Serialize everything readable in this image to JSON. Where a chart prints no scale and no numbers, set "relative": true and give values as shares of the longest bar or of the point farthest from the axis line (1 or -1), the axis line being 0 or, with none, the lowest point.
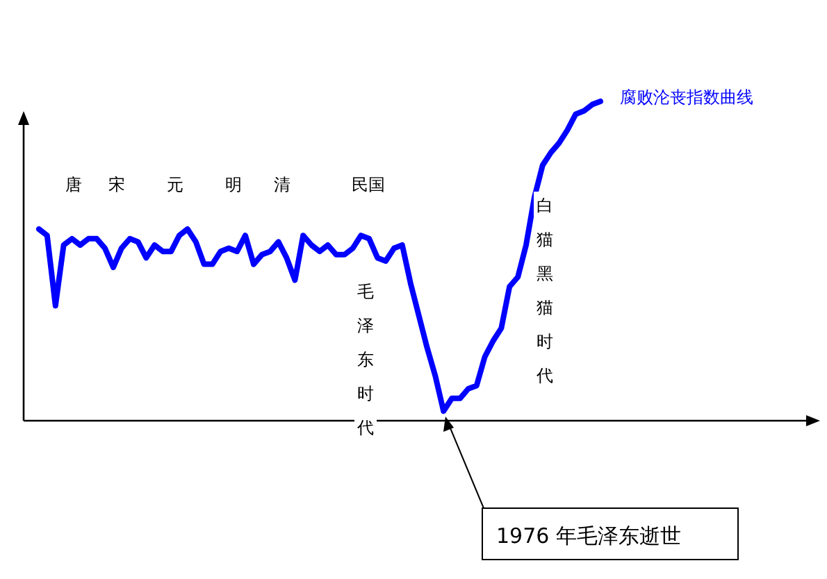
{
  "chart_data": {
    "type": "line",
    "relative": true,
    "categories": [
      null,
      null,
      null,
      null,
      null,
      null,
      null,
      null,
      null,
      null,
      null,
      null,
      null,
      null,
      null,
      null,
      null,
      null,
      null,
      null,
      null,
      null,
      null,
      null,
      null,
      null,
      null,
      null,
      null,
      null,
      null,
      null,
      null,
      null,
      null,
      null,
      null,
      null,
      null,
      null,
      null,
      null,
      null,
      null,
      null,
      null,
      null,
      null,
      null,
      null,
      null,
      null,
      null,
      null,
      null,
      null,
      null,
      null,
      null,
      null,
      null,
      null,
      null,
      null,
      null,
      null,
      null,
      null,
      null
    ],
    "series": [
      {
        "name": "腐败沦丧指数曲线",
        "color": "#0000ff",
        "values": [
          0.6,
          0.58,
          0.36,
          0.55,
          0.57,
          0.55,
          0.57,
          0.57,
          0.54,
          0.48,
          0.54,
          0.57,
          0.56,
          0.51,
          0.55,
          0.53,
          0.53,
          0.58,
          0.6,
          0.56,
          0.49,
          0.49,
          0.53,
          0.54,
          0.53,
          0.58,
          0.49,
          0.52,
          0.53,
          0.56,
          0.51,
          0.44,
          0.58,
          0.55,
          0.53,
          0.55,
          0.52,
          0.52,
          0.54,
          0.58,
          0.57,
          0.51,
          0.5,
          0.54,
          0.55,
          0.43,
          0.33,
          0.23,
          0.14,
          0.03,
          0.07,
          0.07,
          0.1,
          0.11,
          0.2,
          0.25,
          0.29,
          0.42,
          0.45,
          0.55,
          0.7,
          0.8,
          0.84,
          0.87,
          0.91,
          0.96,
          0.97,
          0.99,
          1
        ]
      }
    ],
    "annotations": [
      "唐",
      "宋",
      "元",
      "明",
      "清",
      "民国",
      "毛泽东时代",
      "白猫黑猫时代",
      "1976 年毛泽东逝世"
    ]
  }
}
